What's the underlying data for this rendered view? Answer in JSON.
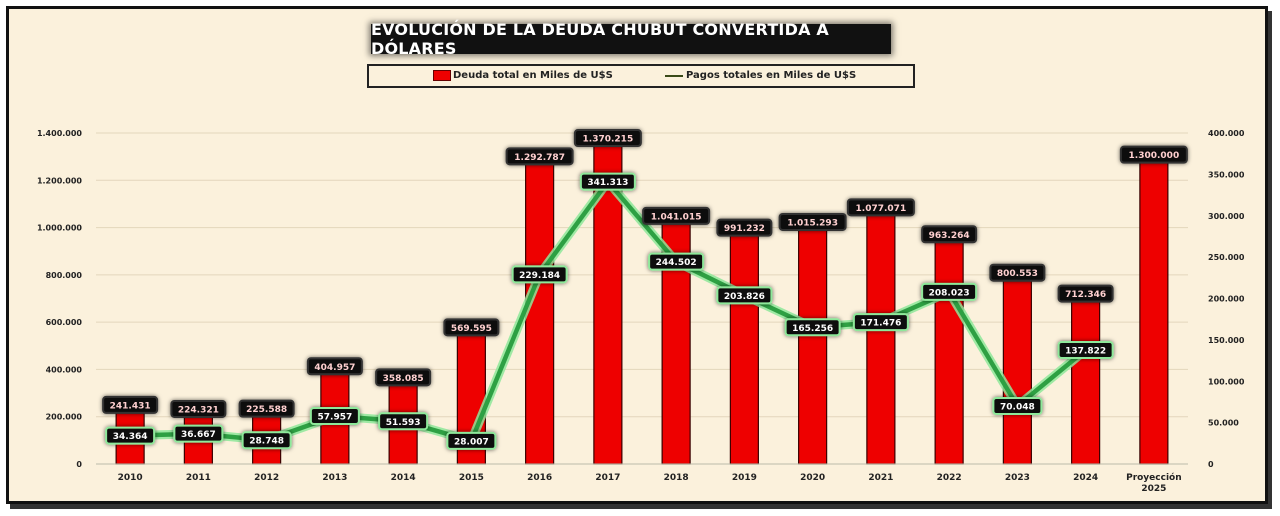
{
  "chart_data": {
    "type": "bar+line",
    "title": "EVOLUCIÓN DE LA DEUDA CHUBUT CONVERTIDA A DÓLARES",
    "categories": [
      "2010",
      "2011",
      "2012",
      "2013",
      "2014",
      "2015",
      "2016",
      "2017",
      "2018",
      "2019",
      "2020",
      "2021",
      "2022",
      "2023",
      "2024",
      "Proyección 2025"
    ],
    "series": [
      {
        "name": "Deuda total en Miles de U$S",
        "type": "bar",
        "axis": "left",
        "values": [
          241431,
          224321,
          225588,
          404957,
          358085,
          569595,
          1292787,
          1370215,
          1041015,
          991232,
          1015293,
          1077071,
          963264,
          800553,
          712346,
          1300000
        ],
        "labels": [
          "241.431",
          "224.321",
          "225.588",
          "404.957",
          "358.085",
          "569.595",
          "1.292.787",
          "1.370.215",
          "1.041.015",
          "991.232",
          "1.015.293",
          "1.077.071",
          "963.264",
          "800.553",
          "712.346",
          "1.300.000"
        ],
        "color": "#ee0000"
      },
      {
        "name": "Pagos totales en Miles de U$S",
        "type": "line",
        "axis": "right",
        "values": [
          34364,
          36667,
          28748,
          57957,
          51593,
          28007,
          229184,
          341313,
          244502,
          203826,
          165256,
          171476,
          208023,
          70048,
          137822,
          null
        ],
        "labels": [
          "34.364",
          "36.667",
          "28.748",
          "57.957",
          "51.593",
          "28.007",
          "229.184",
          "341.313",
          "244.502",
          "203.826",
          "165.256",
          "171.476",
          "208.023",
          "70.048",
          "137.822",
          ""
        ],
        "color": "#2ea043"
      }
    ],
    "y_left": {
      "range": [
        0,
        1400000
      ],
      "ticks": [
        0,
        200000,
        400000,
        600000,
        800000,
        1000000,
        1200000,
        1400000
      ],
      "tick_labels": [
        "0",
        "200.000",
        "400.000",
        "600.000",
        "800.000",
        "1.000.000",
        "1.200.000",
        "1.400.000"
      ]
    },
    "y_right": {
      "range": [
        0,
        400000
      ],
      "ticks": [
        0,
        50000,
        100000,
        150000,
        200000,
        250000,
        300000,
        350000,
        400000
      ],
      "tick_labels": [
        "0",
        "50.000",
        "100.000",
        "150.000",
        "200.000",
        "250.000",
        "300.000",
        "350.000",
        "400.000"
      ]
    },
    "grid": true,
    "legend_position": "top"
  },
  "colors": {
    "background": "#fbf1dc",
    "bar": "#ee0000",
    "line": "#2ea043",
    "line_glow": "#8ee89a",
    "label_bg": "#111111"
  }
}
